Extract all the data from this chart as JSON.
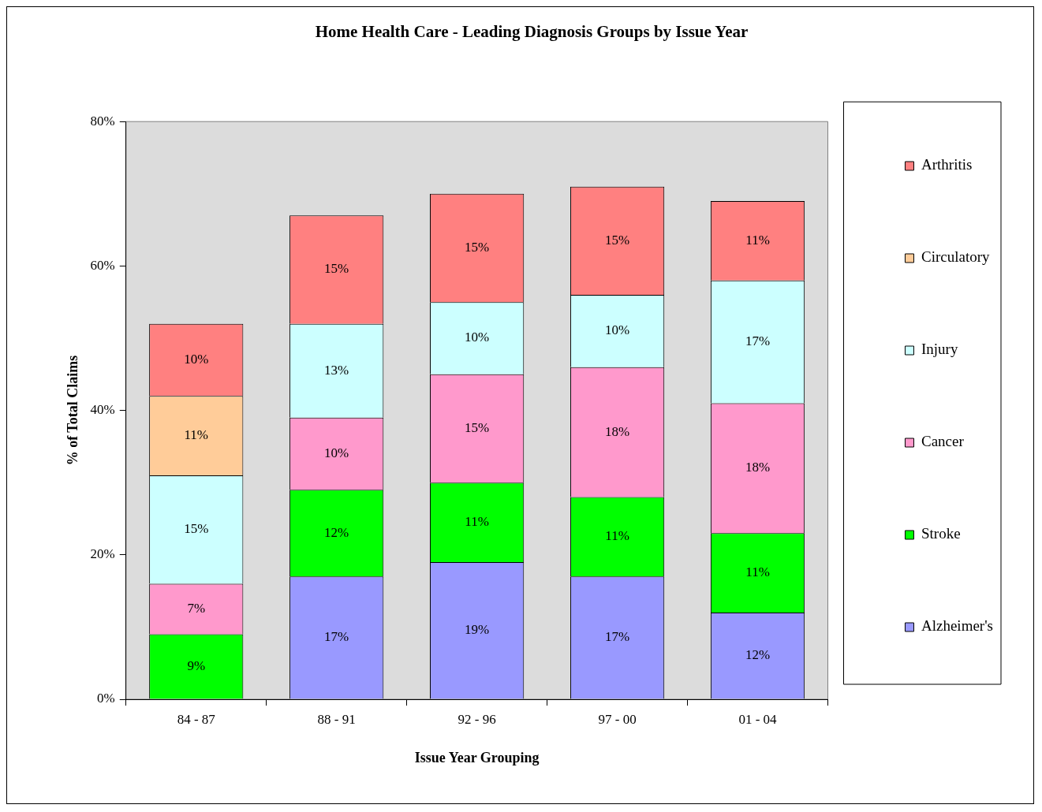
{
  "chart_data": {
    "type": "bar",
    "stacked": true,
    "title": "Home Health Care - Leading Diagnosis Groups by Issue Year",
    "xlabel": "Issue Year Grouping",
    "ylabel": "% of Total Claims",
    "categories": [
      "84 - 87",
      "88 - 91",
      "92 - 96",
      "97 - 00",
      "01 - 04"
    ],
    "ylim": [
      0,
      80
    ],
    "yticks": [
      {
        "value": 0,
        "label": "0%"
      },
      {
        "value": 20,
        "label": "20%"
      },
      {
        "value": 40,
        "label": "40%"
      },
      {
        "value": 60,
        "label": "60%"
      },
      {
        "value": 80,
        "label": "80%"
      }
    ],
    "legend": "right",
    "series": [
      {
        "name": "Alzheimer's",
        "color": "#9999ff",
        "values": [
          null,
          17,
          19,
          17,
          12
        ],
        "value_labels": [
          null,
          "17%",
          "19%",
          "17%",
          "12%"
        ]
      },
      {
        "name": "Stroke",
        "color": "#00ff00",
        "values": [
          9,
          12,
          11,
          11,
          11
        ],
        "value_labels": [
          "9%",
          "12%",
          "11%",
          "11%",
          "11%"
        ]
      },
      {
        "name": "Cancer",
        "color": "#ff99cc",
        "values": [
          7,
          10,
          15,
          18,
          18
        ],
        "value_labels": [
          "7%",
          "10%",
          "15%",
          "18%",
          "18%"
        ]
      },
      {
        "name": "Injury",
        "color": "#ccffff",
        "values": [
          15,
          13,
          10,
          10,
          17
        ],
        "value_labels": [
          "15%",
          "13%",
          "10%",
          "10%",
          "17%"
        ]
      },
      {
        "name": "Circulatory",
        "color": "#ffcc99",
        "values": [
          11,
          null,
          null,
          null,
          null
        ],
        "value_labels": [
          "11%",
          null,
          null,
          null,
          null
        ]
      },
      {
        "name": "Arthritis",
        "color": "#ff8080",
        "values": [
          10,
          15,
          15,
          15,
          11
        ],
        "value_labels": [
          "10%",
          "15%",
          "15%",
          "15%",
          "11%"
        ]
      }
    ]
  }
}
